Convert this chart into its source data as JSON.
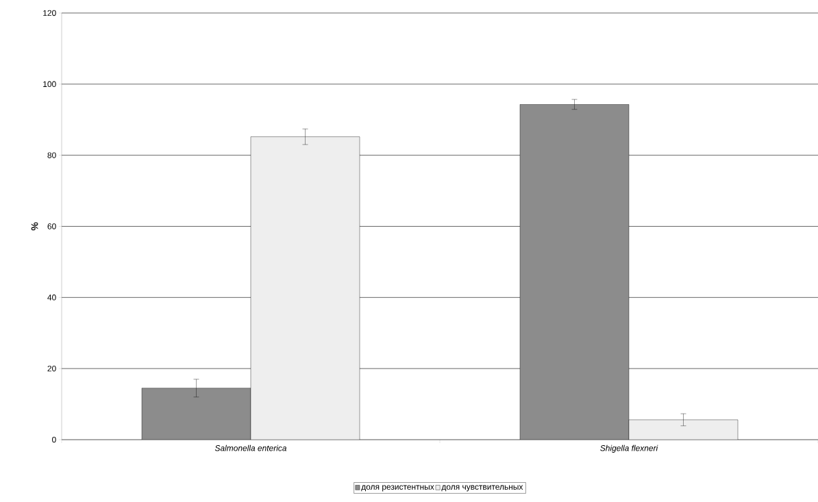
{
  "chart_data": {
    "type": "bar",
    "ylabel": "%",
    "categories": [
      "Salmonella enterica",
      "Shigella flexneri"
    ],
    "series": [
      {
        "name": "доля резистентных",
        "color": "#8c8c8c",
        "values": [
          14.5,
          94.3
        ],
        "errors": [
          2.5,
          1.4
        ]
      },
      {
        "name": "доля чувствительных",
        "color": "#eeeeee",
        "values": [
          85.2,
          5.6
        ],
        "errors": [
          2.2,
          1.7
        ]
      }
    ],
    "ylim": [
      0,
      120
    ],
    "yticks": [
      0,
      20,
      40,
      60,
      80,
      100,
      120
    ],
    "grid": "y",
    "legend": "bottom"
  }
}
